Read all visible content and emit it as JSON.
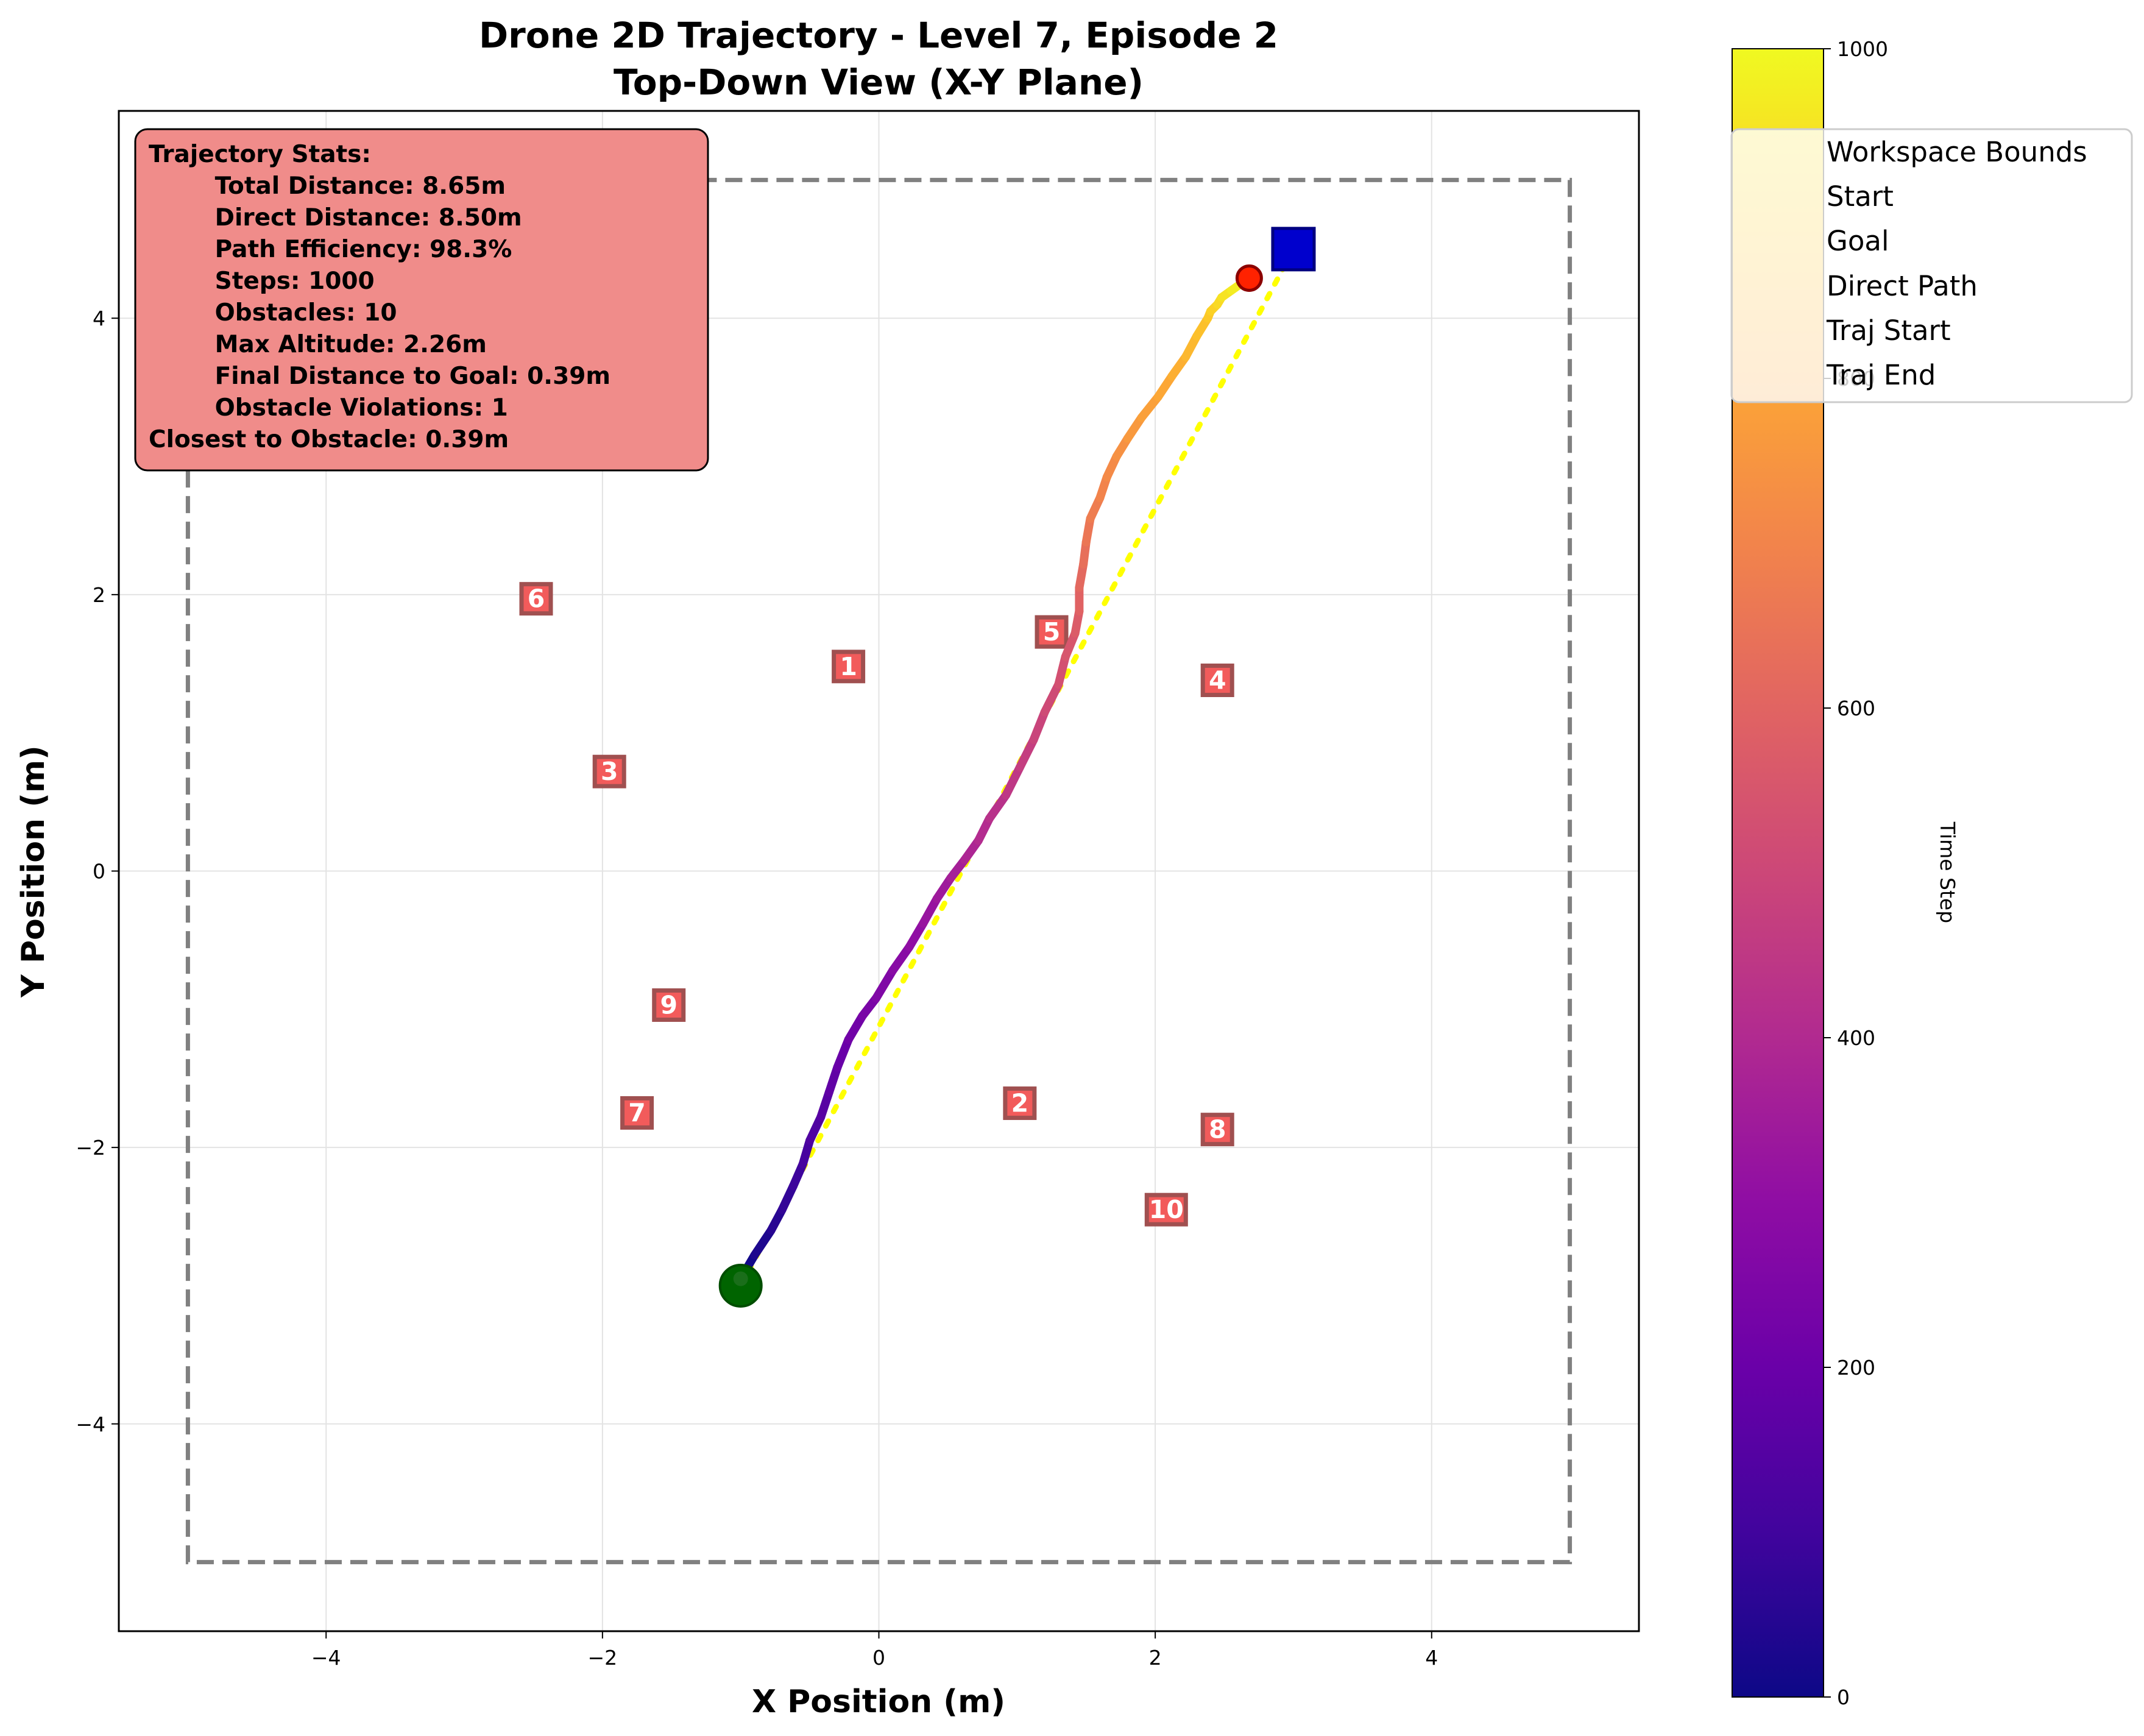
{
  "chart_data": {
    "type": "line",
    "title": "Drone 2D Trajectory - Level 7, Episode 2",
    "subtitle": "Top-Down View (X-Y Plane)",
    "xlabel": "X Position (m)",
    "ylabel": "Y Position (m)",
    "xlim": [
      -5.5,
      5.5
    ],
    "ylim": [
      -5.5,
      5.5
    ],
    "xticks": [
      -4,
      -2,
      0,
      2,
      4
    ],
    "yticks": [
      -4,
      -2,
      0,
      2,
      4
    ],
    "xtick_labels": [
      "−4",
      "−2",
      "0",
      "2",
      "4"
    ],
    "ytick_labels": [
      "−4",
      "−2",
      "0",
      "2",
      "4"
    ],
    "grid": true,
    "workspace_bounds": {
      "x": [
        -5,
        5
      ],
      "y": [
        -5,
        5
      ]
    },
    "start": {
      "x": -1.0,
      "y": -3.0
    },
    "goal": {
      "x": 3.0,
      "y": 4.5
    },
    "traj_end": {
      "x": 2.68,
      "y": 4.29
    },
    "trajectory": {
      "x": [
        -1.0,
        -0.9,
        -0.78,
        -0.7,
        -0.62,
        -0.55,
        -0.5,
        -0.42,
        -0.36,
        -0.3,
        -0.22,
        -0.12,
        -0.02,
        0.1,
        0.22,
        0.32,
        0.42,
        0.52,
        0.62,
        0.72,
        0.8,
        0.92,
        1.02,
        1.12,
        1.2,
        1.3,
        1.35,
        1.42,
        1.45,
        1.45,
        1.48,
        1.5,
        1.53,
        1.6,
        1.65,
        1.72,
        1.8,
        1.9,
        2.02,
        2.12,
        2.22,
        2.3,
        2.38,
        2.4,
        2.45,
        2.48,
        2.55,
        2.62,
        2.68
      ],
      "y": [
        -2.95,
        -2.78,
        -2.6,
        -2.45,
        -2.28,
        -2.12,
        -1.95,
        -1.78,
        -1.6,
        -1.42,
        -1.22,
        -1.05,
        -0.92,
        -0.72,
        -0.55,
        -0.38,
        -0.2,
        -0.05,
        0.08,
        0.22,
        0.38,
        0.55,
        0.75,
        0.95,
        1.15,
        1.35,
        1.55,
        1.72,
        1.88,
        2.05,
        2.22,
        2.38,
        2.55,
        2.7,
        2.85,
        3.0,
        3.13,
        3.28,
        3.43,
        3.58,
        3.72,
        3.87,
        4.0,
        4.05,
        4.1,
        4.15,
        4.2,
        4.25,
        4.29
      ]
    },
    "direct_path": {
      "x": [
        -1.0,
        3.0
      ],
      "y": [
        -3.0,
        4.5
      ]
    },
    "obstacles": [
      {
        "id": "1",
        "x": -0.22,
        "y": 1.48
      },
      {
        "id": "2",
        "x": 1.02,
        "y": -1.68
      },
      {
        "id": "3",
        "x": -1.95,
        "y": 0.72
      },
      {
        "id": "4",
        "x": 2.45,
        "y": 1.38
      },
      {
        "id": "5",
        "x": 1.25,
        "y": 1.73
      },
      {
        "id": "6",
        "x": -2.48,
        "y": 1.97
      },
      {
        "id": "7",
        "x": -1.75,
        "y": -1.75
      },
      {
        "id": "8",
        "x": 2.45,
        "y": -1.87
      },
      {
        "id": "9",
        "x": -1.52,
        "y": -0.97
      },
      {
        "id": "10",
        "x": 2.08,
        "y": -2.45
      }
    ],
    "colorbar": {
      "label": "Time Step",
      "range": [
        0,
        1000
      ],
      "ticks": [
        0,
        200,
        400,
        600,
        800,
        1000
      ],
      "tick_labels": [
        "0",
        "200",
        "400",
        "600",
        "800",
        "1000"
      ],
      "colormap": "plasma"
    },
    "legend": {
      "placement": "top-right",
      "entries": [
        "Workspace Bounds",
        "Start",
        "Goal",
        "Direct Path",
        "Traj Start",
        "Traj End"
      ]
    },
    "stats_box": {
      "lines": [
        "Trajectory Stats:",
        "        Total Distance: 8.65m",
        "        Direct Distance: 8.50m",
        "        Path Efficiency: 98.3%",
        "        Steps: 1000",
        "        Obstacles: 10",
        "        Max Altitude: 2.26m",
        "        Final Distance to Goal: 0.39m",
        "        Obstacle Violations: 1",
        "Closest to Obstacle: 0.39m"
      ]
    },
    "colors": {
      "workspace": "#808080",
      "start": "#006400",
      "goal": "#0000cd",
      "direct_path": "#ffff00",
      "traj_end": "#ff2200",
      "obstacle_fill": "#f25b5b",
      "obstacle_edge": "#a05050",
      "stats_bg": "#f08c8a"
    }
  }
}
